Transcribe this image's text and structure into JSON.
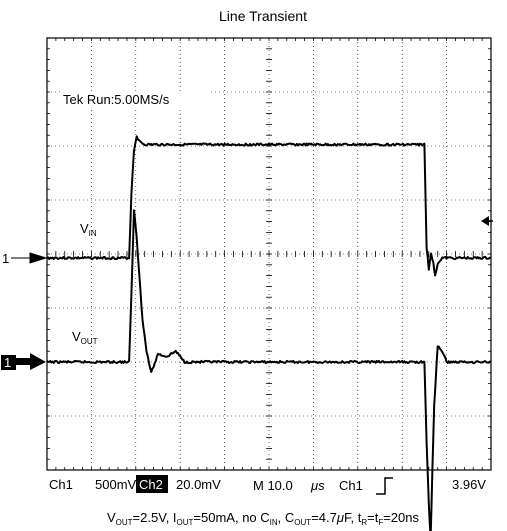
{
  "title": "Line Transient",
  "scope": {
    "run_status": "Tek Run:5.00MS/s",
    "status_bar": {
      "ch1_label": "Ch1",
      "ch1_scale": "500mV",
      "ch2_label": "Ch2",
      "ch2_scale": "20.0mV",
      "time_label": "M 10.0",
      "time_unit": "μs",
      "trigger_label": "Ch1",
      "trigger_level": "3.96V"
    }
  },
  "footer": {
    "vout": "V",
    "vout_sub": "OUT",
    "vout_val": "=2.5V, I",
    "iout_sub": "OUT",
    "iout_val": "=50mA, no C",
    "cin_sub": "IN",
    "cin_val": ", C",
    "cout_sub": "OUT",
    "cout_val": "=4.7",
    "mu": "μ",
    "cout_unit": "F, t",
    "tr_sub": "R",
    "eq": "=t",
    "tf_sub": "F",
    "tr_val": "=20ns"
  },
  "chart_data": {
    "type": "line",
    "title": "Line Transient",
    "xlabel": "",
    "ylabel": "",
    "grid": true,
    "xlim": [
      0,
      100
    ],
    "x_unit": "μs",
    "x_per_div": 10,
    "series": [
      {
        "name": "VIN",
        "channel": 1,
        "ground_marker": "1",
        "label_main": "V",
        "label_sub": "IN",
        "units_per_div": 0.5,
        "ylim_div": [
          -4,
          4
        ],
        "color": "#000000",
        "x": [
          0,
          18.5,
          19.0,
          19.6,
          20.2,
          20.8,
          22,
          30,
          50,
          70,
          85,
          85.5,
          86,
          86.5,
          87.0,
          87.4,
          88.0,
          89.0,
          90,
          100
        ],
        "y": [
          0.0,
          0.0,
          0.6,
          1.0,
          1.13,
          1.08,
          1.05,
          1.05,
          1.05,
          1.05,
          1.05,
          0.1,
          -0.1,
          0.05,
          -0.05,
          -0.16,
          -0.05,
          0.0,
          0.0,
          0.0
        ]
      },
      {
        "name": "VOUT",
        "channel": 2,
        "ground_marker": "1",
        "label_main": "V",
        "label_sub": "OUT",
        "units_per_div": 0.02,
        "ylim_div": [
          -4,
          4
        ],
        "color": "#000000",
        "x": [
          0,
          18.5,
          19.0,
          19.6,
          20.2,
          20.8,
          21.5,
          22.4,
          23.5,
          25,
          27,
          29,
          31,
          40,
          60,
          85,
          85.5,
          86.0,
          86.4,
          86.8,
          87.2,
          88.0,
          89.0,
          90,
          100
        ],
        "y": [
          0.0,
          0.0,
          0.025,
          0.056,
          0.046,
          0.032,
          0.016,
          0.004,
          -0.004,
          0.003,
          0.002,
          0.004,
          0.0,
          0.0,
          0.0,
          0.0,
          -0.03,
          -0.052,
          -0.066,
          -0.04,
          -0.016,
          0.006,
          0.004,
          0.0,
          0.0
        ]
      }
    ]
  }
}
